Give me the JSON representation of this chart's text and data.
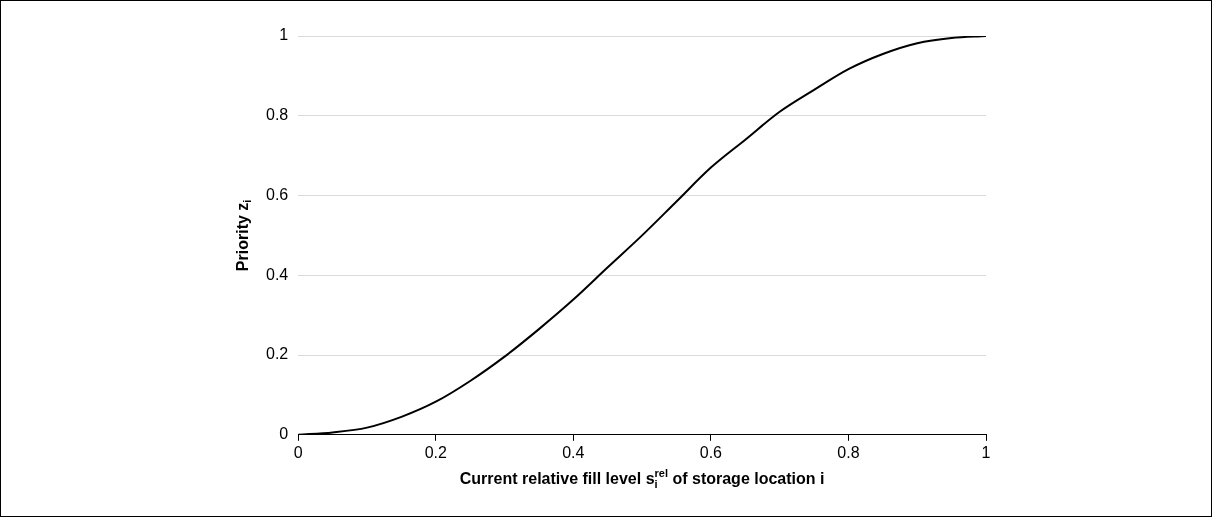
{
  "chart_data": {
    "type": "line",
    "xlabel": "Current relative fill level s$_{i}$$^{rel}$ of storage location i",
    "ylabel": "Priority z$_{i}$",
    "x": [
      0,
      0.05,
      0.1,
      0.15,
      0.2,
      0.25,
      0.3,
      0.35,
      0.4,
      0.45,
      0.5,
      0.55,
      0.6,
      0.65,
      0.7,
      0.75,
      0.8,
      0.85,
      0.9,
      0.95,
      1
    ],
    "series": [
      {
        "color": "#000000",
        "values": [
          0,
          0.006,
          0.018,
          0.045,
          0.083,
          0.135,
          0.196,
          0.265,
          0.339,
          0.42,
          0.5,
          0.585,
          0.67,
          0.74,
          0.81,
          0.865,
          0.917,
          0.955,
          0.982,
          0.995,
          1
        ]
      }
    ],
    "xlim": [
      0,
      1
    ],
    "xticks": [
      0,
      0.2,
      0.4,
      0.6,
      0.8,
      1
    ],
    "ylim": [
      0,
      1
    ],
    "yticks": [
      0,
      0.2,
      0.4,
      0.6,
      0.8,
      1
    ],
    "grid": "y",
    "legend": false,
    "marker": "none",
    "line_style": "solid"
  }
}
